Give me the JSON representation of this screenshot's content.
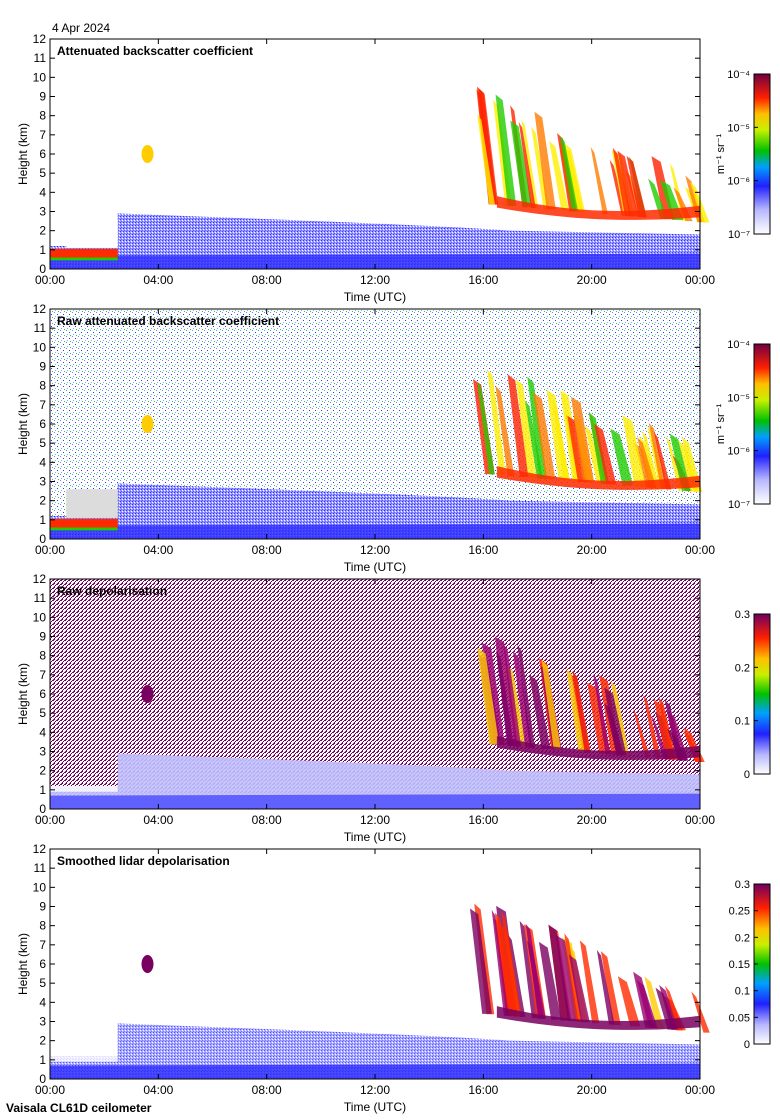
{
  "date_label": "4 Apr 2024",
  "footer": "Vaisala CL61D ceilometer",
  "colors": {
    "background_blue": "#2a2aff",
    "light_blue": "#a8a8ff",
    "cloud_green": "#22cc00",
    "cloud_yellow": "#ffee00",
    "cloud_red": "#ff2200",
    "depol_purple": "#7a0060"
  },
  "chart_data": [
    {
      "type": "heatmap",
      "title": "Attenuated backscatter coefficient",
      "xlabel": "Time (UTC)",
      "ylabel": "Height (km)",
      "xlim": [
        0,
        24
      ],
      "ylim": [
        0,
        12
      ],
      "x_tick_labels": [
        "00:00",
        "04:00",
        "08:00",
        "12:00",
        "16:00",
        "20:00",
        "00:00"
      ],
      "y_ticks": [
        0,
        1,
        2,
        3,
        4,
        5,
        6,
        7,
        8,
        9,
        10,
        11,
        12
      ],
      "colorbar": {
        "scale": "log",
        "range": [
          1e-07,
          0.0001
        ],
        "unit_label": "m⁻¹ sr⁻¹",
        "tick_labels": [
          "10⁻⁴",
          "10⁻⁵",
          "10⁻⁶",
          "10⁻⁷"
        ]
      }
    },
    {
      "type": "heatmap",
      "title": "Raw attenuated backscatter coefficient",
      "xlabel": "Time (UTC)",
      "ylabel": "Height (km)",
      "xlim": [
        0,
        24
      ],
      "ylim": [
        0,
        12
      ],
      "x_tick_labels": [
        "00:00",
        "04:00",
        "08:00",
        "12:00",
        "16:00",
        "20:00",
        "00:00"
      ],
      "y_ticks": [
        0,
        1,
        2,
        3,
        4,
        5,
        6,
        7,
        8,
        9,
        10,
        11,
        12
      ],
      "colorbar": {
        "scale": "log",
        "range": [
          1e-07,
          0.0001
        ],
        "unit_label": "m⁻¹ sr⁻¹",
        "tick_labels": [
          "10⁻⁴",
          "10⁻⁵",
          "10⁻⁶",
          "10⁻⁷"
        ]
      }
    },
    {
      "type": "heatmap",
      "title": "Raw depolarisation",
      "xlabel": "Time (UTC)",
      "ylabel": "Height (km)",
      "xlim": [
        0,
        24
      ],
      "ylim": [
        0,
        12
      ],
      "x_tick_labels": [
        "00:00",
        "04:00",
        "08:00",
        "12:00",
        "16:00",
        "20:00",
        "00:00"
      ],
      "y_ticks": [
        0,
        1,
        2,
        3,
        4,
        5,
        6,
        7,
        8,
        9,
        10,
        11,
        12
      ],
      "colorbar": {
        "scale": "linear",
        "range": [
          0,
          0.3
        ],
        "unit_label": "",
        "tick_labels": [
          "0.3",
          "0.2",
          "0.1",
          "0"
        ]
      }
    },
    {
      "type": "heatmap",
      "title": "Smoothed lidar depolarisation",
      "xlabel": "Time (UTC)",
      "ylabel": "Height (km)",
      "xlim": [
        0,
        24
      ],
      "ylim": [
        0,
        12
      ],
      "x_tick_labels": [
        "00:00",
        "04:00",
        "08:00",
        "12:00",
        "16:00",
        "20:00",
        "00:00"
      ],
      "y_ticks": [
        0,
        1,
        2,
        3,
        4,
        5,
        6,
        7,
        8,
        9,
        10,
        11,
        12
      ],
      "colorbar": {
        "scale": "linear",
        "range": [
          0,
          0.3
        ],
        "unit_label": "",
        "tick_labels": [
          "0.3",
          "0.25",
          "0.2",
          "0.15",
          "0.1",
          "0.05",
          "0"
        ]
      }
    }
  ]
}
